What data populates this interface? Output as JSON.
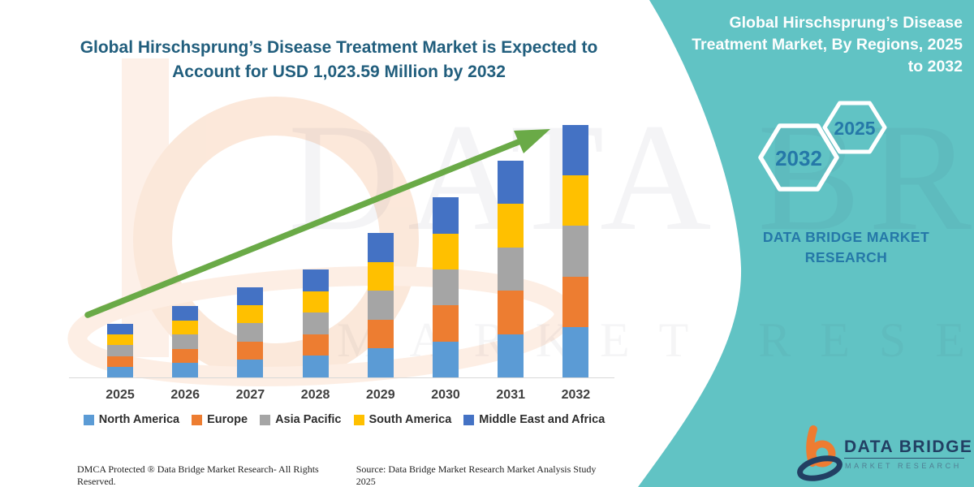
{
  "main_title": "Global Hirschsprung’s Disease Treatment Market is Expected to Account for USD 1,023.59 Million by 2032",
  "side_panel": {
    "title": "Global Hirschsprung’s Disease Treatment Market, By Regions, 2025 to 2032",
    "hexagon_left": "2032",
    "hexagon_right": "2025",
    "brand_caption": "DATA BRIDGE MARKET RESEARCH"
  },
  "watermark": {
    "line1": "DATA BRIDGE",
    "line2": "MARKET RESEARCH"
  },
  "chart_data": {
    "type": "bar",
    "stacked": true,
    "title": "Global Hirschsprung’s Disease Treatment Market is Expected to Account for USD 1,023.59 Million by 2032",
    "units": "USD Million",
    "categories": [
      "2025",
      "2026",
      "2027",
      "2028",
      "2029",
      "2030",
      "2031",
      "2032"
    ],
    "series": [
      {
        "name": "North America",
        "color": "#5b9bd5",
        "values": [
          43.4,
          57.9,
          73.1,
          87.6,
          117.2,
          146.1,
          175.8,
          204.7
        ]
      },
      {
        "name": "Europe",
        "color": "#ed7d31",
        "values": [
          43.4,
          57.9,
          73.1,
          87.6,
          117.2,
          146.1,
          175.8,
          204.7
        ]
      },
      {
        "name": "Asia Pacific",
        "color": "#a5a5a5",
        "values": [
          43.4,
          57.9,
          73.1,
          87.6,
          117.2,
          146.1,
          175.8,
          204.7
        ]
      },
      {
        "name": "South America",
        "color": "#ffc000",
        "values": [
          43.4,
          57.9,
          73.1,
          87.6,
          117.2,
          146.1,
          175.8,
          204.7
        ]
      },
      {
        "name": "Middle East and Africa",
        "color": "#4472c4",
        "values": [
          43.4,
          57.9,
          73.1,
          87.6,
          117.2,
          146.1,
          175.8,
          204.79
        ]
      }
    ],
    "totals": [
      217.2,
      289.7,
      365.4,
      437.8,
      585.9,
      730.7,
      878.8,
      1023.59
    ],
    "ylim": [
      0,
      1100
    ],
    "grid": false,
    "legend_position": "bottom",
    "trend_arrow": true
  },
  "footer": {
    "left": "DMCA Protected ® Data Bridge Market Research-  All Rights Reserved.",
    "right": "Source: Data Bridge Market Research  Market Analysis Study 2025"
  },
  "logo": {
    "name": "DATA BRIDGE",
    "caption": "MARKET RESEARCH"
  },
  "colors": {
    "panel_teal": "#61c3c4",
    "chart_title_text": "#215e7d",
    "arrow_green": "#6aaa47",
    "accent_blue": "#2578a8",
    "logo_navy": "#223f63",
    "logo_orange": "#ee7c31"
  }
}
